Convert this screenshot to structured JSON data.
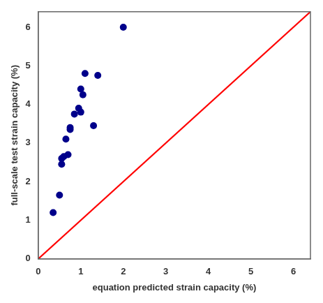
{
  "chart_data": {
    "type": "scatter",
    "series": [
      {
        "type": "line",
        "color": "#FF0000",
        "line_style": "solid",
        "x": [
          0,
          6.4
        ],
        "values": [
          0,
          6.4
        ]
      },
      {
        "type": "scatter",
        "color": "#00008B",
        "marker": "circle",
        "x": [
          0.35,
          0.5,
          0.55,
          0.55,
          0.6,
          0.65,
          0.7,
          0.75,
          0.75,
          0.85,
          0.95,
          1.0,
          1.0,
          1.05,
          1.1,
          1.3,
          1.4,
          2.0
        ],
        "values": [
          1.2,
          1.65,
          2.45,
          2.6,
          2.65,
          3.1,
          2.7,
          3.35,
          3.4,
          3.75,
          3.9,
          3.8,
          4.4,
          4.25,
          4.8,
          3.45,
          4.75,
          6.0
        ]
      }
    ],
    "xlabel": "equation predicted strain capacity (%)",
    "ylabel": "full-scale test strain capacity (%)",
    "xlim": [
      0,
      6.4
    ],
    "ylim": [
      0,
      6.4
    ],
    "xticks": [
      0,
      1,
      2,
      3,
      4,
      5,
      6
    ],
    "yticks": [
      0,
      1,
      2,
      3,
      4,
      5,
      6
    ],
    "grid": false
  }
}
